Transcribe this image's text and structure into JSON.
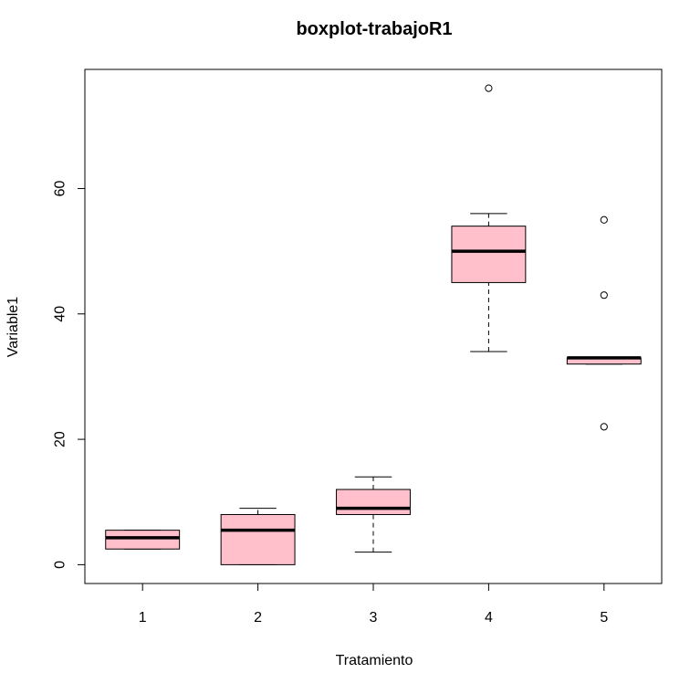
{
  "chart_data": {
    "type": "box",
    "title": "boxplot-trabajoR1",
    "xlabel": "Tratamiento",
    "ylabel": "Variable1",
    "categories": [
      "1",
      "2",
      "3",
      "4",
      "5"
    ],
    "yticks": [
      0,
      20,
      40,
      60
    ],
    "ylim": [
      -3,
      79
    ],
    "box_fill": "#ffc0cb",
    "grid": false,
    "boxes": [
      {
        "category": "1",
        "whisker_low": 2.5,
        "q1": 2.5,
        "median": 4.3,
        "q3": 5.5,
        "whisker_high": 5.5,
        "outliers": []
      },
      {
        "category": "2",
        "whisker_low": 0,
        "q1": 0,
        "median": 5.5,
        "q3": 8,
        "whisker_high": 9,
        "outliers": []
      },
      {
        "category": "3",
        "whisker_low": 2,
        "q1": 8,
        "median": 9,
        "q3": 12,
        "whisker_high": 14,
        "outliers": []
      },
      {
        "category": "4",
        "whisker_low": 34,
        "q1": 45,
        "median": 50,
        "q3": 54,
        "whisker_high": 56,
        "outliers": [
          76
        ]
      },
      {
        "category": "5",
        "whisker_low": 32,
        "q1": 32,
        "median": 33,
        "q3": 33,
        "whisker_high": 33,
        "outliers": [
          22,
          43,
          55
        ]
      }
    ]
  }
}
